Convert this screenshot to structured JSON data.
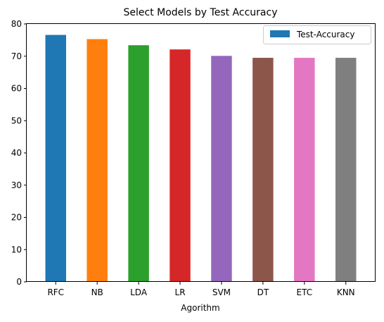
{
  "chart_data": {
    "type": "bar",
    "title": "Select Models by Test Accuracy",
    "xlabel": "Agorithm",
    "ylabel": "",
    "categories": [
      "RFC",
      "NB",
      "LDA",
      "LR",
      "SVM",
      "DT",
      "ETC",
      "KNN"
    ],
    "series": [
      {
        "name": "Test-Accuracy",
        "values": [
          76.6,
          75.3,
          73.4,
          72.1,
          70.1,
          69.5,
          69.5,
          69.5
        ]
      }
    ],
    "bar_colors": [
      "#1f77b4",
      "#ff7f0e",
      "#2ca02c",
      "#d62728",
      "#9467bd",
      "#8c564b",
      "#e377c2",
      "#7f7f7f"
    ],
    "legend_color": "#1f77b4",
    "ylim": [
      0,
      80
    ],
    "yticks": [
      0,
      10,
      20,
      30,
      40,
      50,
      60,
      70,
      80
    ],
    "grid": false,
    "legend_position": "top-right"
  }
}
